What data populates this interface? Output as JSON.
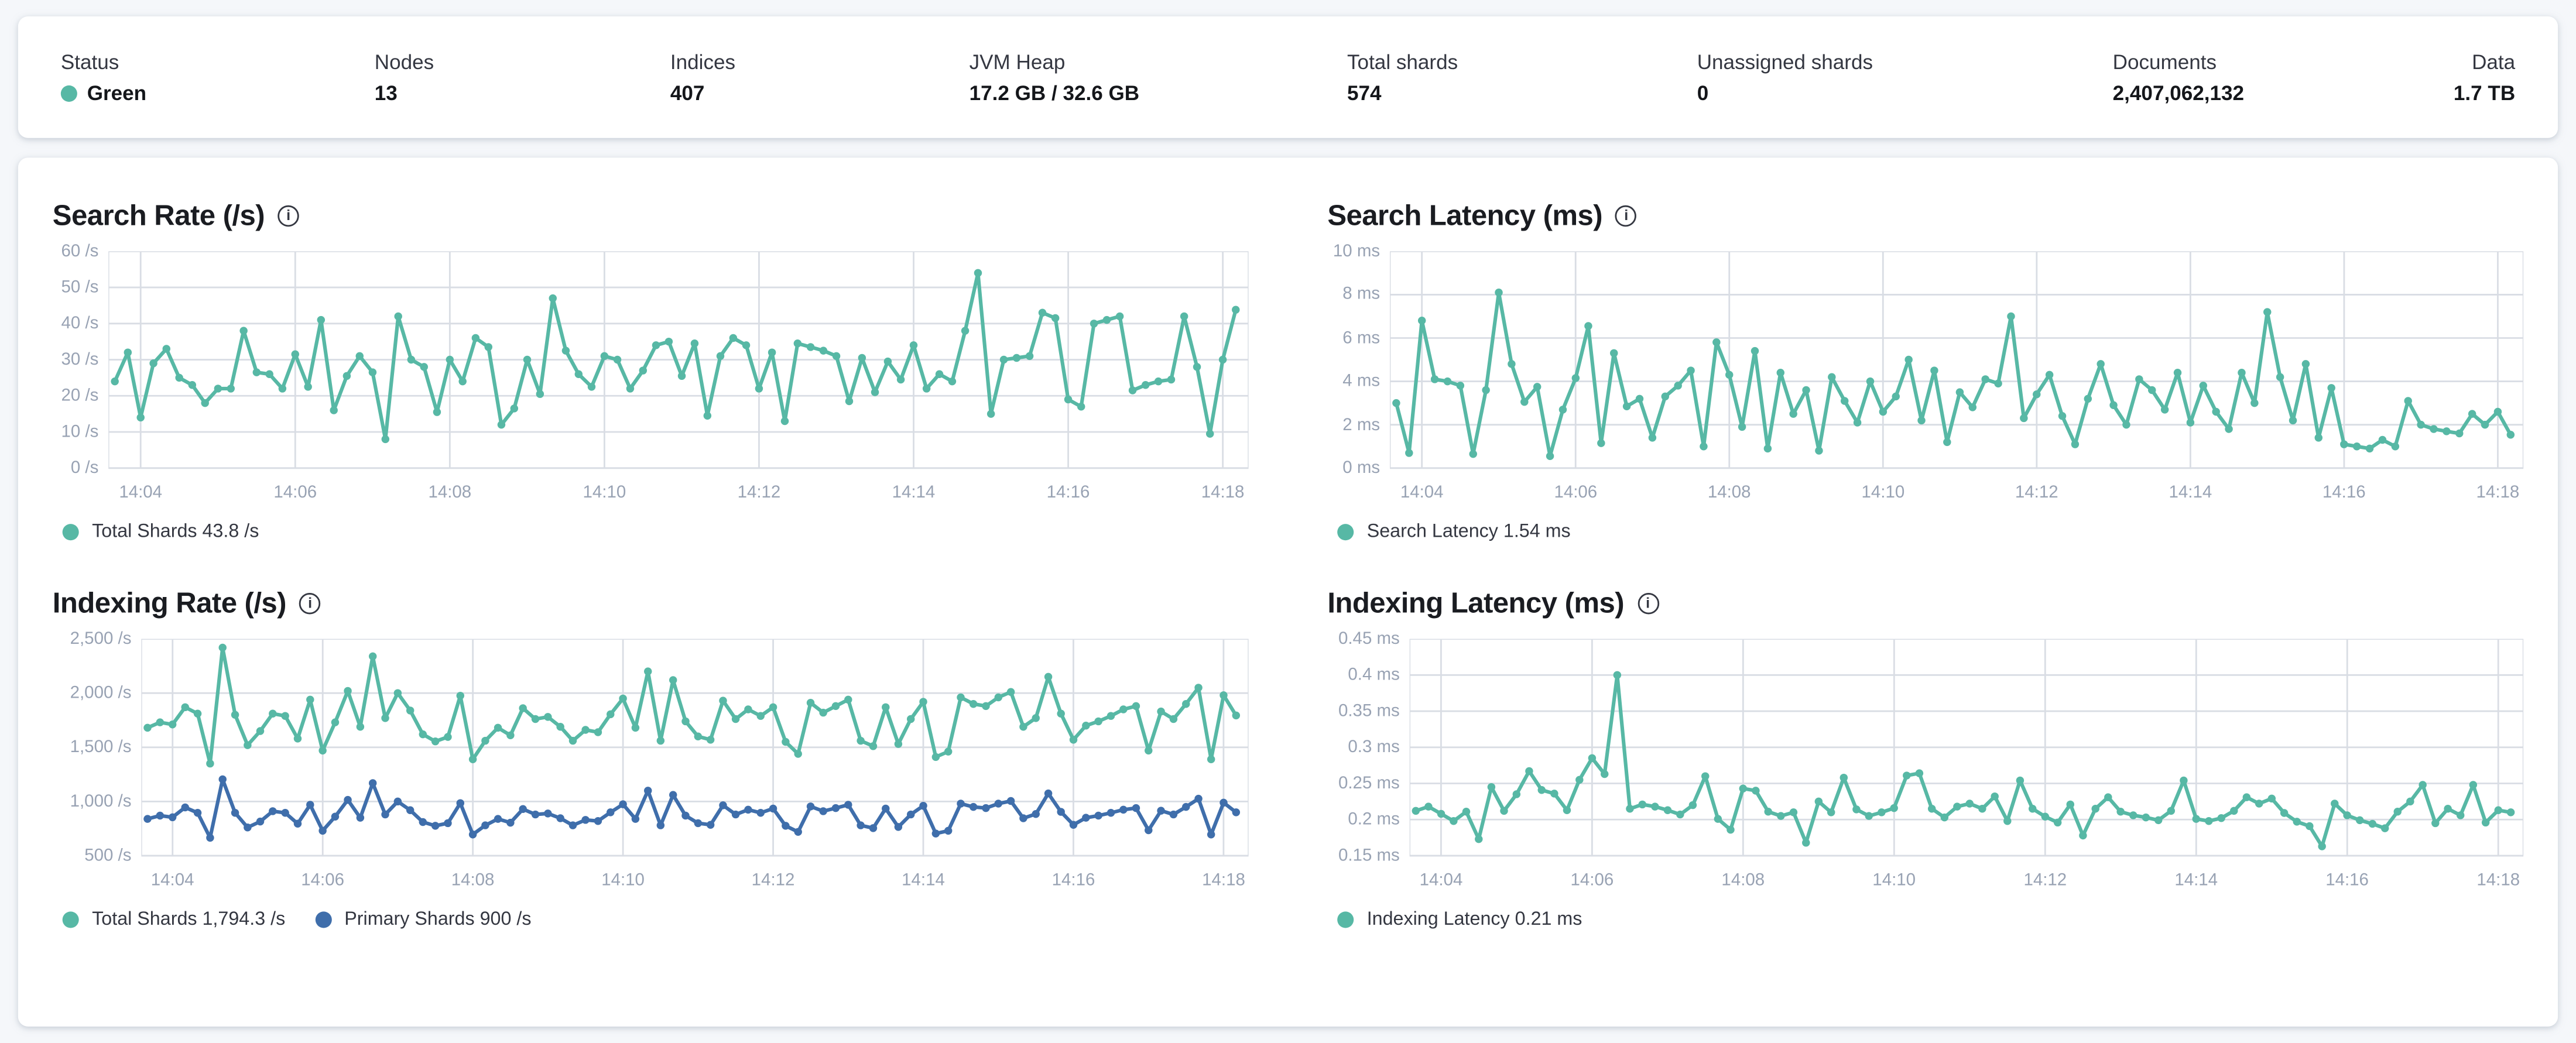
{
  "topbar": {
    "stats": [
      {
        "label": "Status",
        "value": "Green",
        "dot_color": "#57b8a5"
      },
      {
        "label": "Nodes",
        "value": "13"
      },
      {
        "label": "Indices",
        "value": "407"
      },
      {
        "label": "JVM Heap",
        "value": "17.2 GB / 32.6 GB"
      },
      {
        "label": "Total shards",
        "value": "574"
      },
      {
        "label": "Unassigned shards",
        "value": "0"
      },
      {
        "label": "Documents",
        "value": "2,407,062,132"
      },
      {
        "label": "Data",
        "value": "1.7 TB"
      }
    ]
  },
  "icons": {
    "info": "i"
  },
  "colors": {
    "teal": "#57b8a5",
    "blue": "#3f6eab",
    "grid": "#d9dde4",
    "tick_text": "#98a2b3"
  },
  "chart_data": [
    {
      "type": "line",
      "title": "Search Rate (/s)",
      "x_start": "14:03:40",
      "x_step_seconds": 10,
      "x_ticks": [
        "14:04",
        "14:06",
        "14:08",
        "14:10",
        "14:12",
        "14:14",
        "14:16",
        "14:18"
      ],
      "ylim": [
        0,
        60
      ],
      "y_ticks": [
        0,
        10,
        20,
        30,
        40,
        50,
        60
      ],
      "y_tick_labels": [
        "0 /s",
        "10 /s",
        "20 /s",
        "30 /s",
        "40 /s",
        "50 /s",
        "60 /s"
      ],
      "grid": true,
      "legend_position": "bottom",
      "legend": [
        {
          "label": "Total Shards 43.8 /s",
          "color": "#57b8a5"
        }
      ],
      "series": [
        {
          "name": "Total Shards",
          "current": "43.8 /s",
          "color": "#57b8a5",
          "values": [
            24,
            32,
            14,
            29,
            33,
            25,
            23,
            18,
            22,
            22,
            38,
            26.5,
            26,
            22,
            31.5,
            22.5,
            41,
            16,
            25.5,
            31,
            26.5,
            8,
            42,
            30,
            28,
            15.5,
            30,
            24,
            36,
            33.5,
            12,
            16.5,
            30,
            20.5,
            47,
            32.5,
            26,
            22.5,
            31,
            30,
            22,
            27,
            34,
            35,
            25.5,
            34.5,
            14.5,
            31,
            36,
            34,
            22,
            32,
            13,
            34.5,
            33.5,
            32.5,
            31,
            18.5,
            30.5,
            21,
            29.5,
            24.5,
            34,
            22,
            26,
            24,
            38,
            54,
            15,
            30,
            30.5,
            31,
            43,
            41.5,
            19,
            17,
            40,
            41,
            42,
            21.5,
            23,
            24,
            24.5,
            42,
            28,
            9.5,
            30,
            43.8
          ]
        }
      ]
    },
    {
      "type": "line",
      "title": "Search Latency (ms)",
      "x_start": "14:03:40",
      "x_step_seconds": 10,
      "x_ticks": [
        "14:04",
        "14:06",
        "14:08",
        "14:10",
        "14:12",
        "14:14",
        "14:16",
        "14:18"
      ],
      "ylim": [
        0,
        10
      ],
      "y_ticks": [
        0,
        2,
        4,
        6,
        8,
        10
      ],
      "y_tick_labels": [
        "0 ms",
        "2 ms",
        "4 ms",
        "6 ms",
        "8 ms",
        "10 ms"
      ],
      "grid": true,
      "legend_position": "bottom",
      "legend": [
        {
          "label": "Search Latency 1.54 ms",
          "color": "#57b8a5"
        }
      ],
      "series": [
        {
          "name": "Search Latency",
          "current": "1.54 ms",
          "color": "#57b8a5",
          "values": [
            3.0,
            0.7,
            6.8,
            4.1,
            4.0,
            3.8,
            0.65,
            3.6,
            8.1,
            4.8,
            3.05,
            3.75,
            0.55,
            2.7,
            4.15,
            6.55,
            1.15,
            5.3,
            2.85,
            3.2,
            1.4,
            3.3,
            3.8,
            4.5,
            1.0,
            5.8,
            4.3,
            1.9,
            5.4,
            0.9,
            4.4,
            2.5,
            3.6,
            0.8,
            4.2,
            3.1,
            2.1,
            4.0,
            2.6,
            3.3,
            5.0,
            2.2,
            4.5,
            1.2,
            3.5,
            2.8,
            4.1,
            3.9,
            7.0,
            2.3,
            3.4,
            4.3,
            2.4,
            1.1,
            3.2,
            4.8,
            2.9,
            2.0,
            4.1,
            3.6,
            2.7,
            4.4,
            2.1,
            3.8,
            2.6,
            1.8,
            4.4,
            3.0,
            7.2,
            4.2,
            2.2,
            4.8,
            1.4,
            3.7,
            1.1,
            1.0,
            0.9,
            1.3,
            1.0,
            3.1,
            2.0,
            1.8,
            1.7,
            1.6,
            2.5,
            2.0,
            2.6,
            1.54
          ]
        }
      ]
    },
    {
      "type": "line",
      "title": "Indexing Rate (/s)",
      "x_start": "14:03:40",
      "x_step_seconds": 10,
      "x_ticks": [
        "14:04",
        "14:06",
        "14:08",
        "14:10",
        "14:12",
        "14:14",
        "14:16",
        "14:18"
      ],
      "ylim": [
        500,
        2500
      ],
      "y_ticks": [
        500,
        1000,
        1500,
        2000,
        2500
      ],
      "y_tick_labels": [
        "500 /s",
        "1,000 /s",
        "1,500 /s",
        "2,000 /s",
        "2,500 /s"
      ],
      "grid": true,
      "legend_position": "bottom",
      "legend": [
        {
          "label": "Total Shards 1,794.3 /s",
          "color": "#57b8a5"
        },
        {
          "label": "Primary Shards 900 /s",
          "color": "#3f6eab"
        }
      ],
      "series": [
        {
          "name": "Total Shards",
          "current": "1,794.3 /s",
          "color": "#57b8a5",
          "values": [
            1680,
            1730,
            1710,
            1870,
            1810,
            1350,
            2420,
            1800,
            1520,
            1650,
            1810,
            1790,
            1580,
            1940,
            1470,
            1730,
            2020,
            1690,
            2340,
            1770,
            2000,
            1840,
            1620,
            1555,
            1595,
            1975,
            1390,
            1560,
            1680,
            1610,
            1860,
            1760,
            1780,
            1690,
            1560,
            1660,
            1640,
            1805,
            1950,
            1680,
            2200,
            1560,
            2120,
            1740,
            1600,
            1570,
            1930,
            1760,
            1850,
            1790,
            1870,
            1550,
            1440,
            1910,
            1820,
            1880,
            1940,
            1560,
            1510,
            1870,
            1530,
            1760,
            1920,
            1410,
            1460,
            1960,
            1900,
            1880,
            1960,
            2010,
            1690,
            1770,
            2150,
            1810,
            1570,
            1700,
            1740,
            1790,
            1850,
            1880,
            1470,
            1830,
            1760,
            1900,
            2050,
            1390,
            1980,
            1794.3
          ]
        },
        {
          "name": "Primary Shards",
          "current": "900 /s",
          "color": "#3f6eab",
          "values": [
            840,
            870,
            855,
            945,
            895,
            665,
            1205,
            895,
            760,
            815,
            910,
            895,
            795,
            970,
            730,
            860,
            1015,
            850,
            1170,
            880,
            1000,
            920,
            810,
            775,
            800,
            985,
            695,
            780,
            840,
            805,
            930,
            880,
            890,
            845,
            780,
            830,
            820,
            900,
            975,
            840,
            1100,
            780,
            1060,
            870,
            800,
            785,
            965,
            880,
            925,
            895,
            935,
            775,
            720,
            955,
            910,
            940,
            970,
            780,
            755,
            935,
            765,
            880,
            960,
            705,
            730,
            980,
            950,
            940,
            980,
            1005,
            845,
            885,
            1075,
            905,
            785,
            850,
            870,
            895,
            925,
            940,
            735,
            915,
            880,
            950,
            1025,
            695,
            990,
            900
          ]
        }
      ]
    },
    {
      "type": "line",
      "title": "Indexing Latency (ms)",
      "x_start": "14:03:40",
      "x_step_seconds": 10,
      "x_ticks": [
        "14:04",
        "14:06",
        "14:08",
        "14:10",
        "14:12",
        "14:14",
        "14:16",
        "14:18"
      ],
      "ylim": [
        0.15,
        0.45
      ],
      "y_ticks": [
        0.15,
        0.2,
        0.25,
        0.3,
        0.35,
        0.4,
        0.45
      ],
      "y_tick_labels": [
        "0.15 ms",
        "0.2 ms",
        "0.25 ms",
        "0.3 ms",
        "0.35 ms",
        "0.4 ms",
        "0.45 ms"
      ],
      "grid": true,
      "legend_position": "bottom",
      "legend": [
        {
          "label": "Indexing Latency 0.21 ms",
          "color": "#57b8a5"
        }
      ],
      "series": [
        {
          "name": "Indexing Latency",
          "current": "0.21 ms",
          "color": "#57b8a5",
          "values": [
            0.212,
            0.218,
            0.208,
            0.198,
            0.211,
            0.173,
            0.245,
            0.212,
            0.235,
            0.267,
            0.241,
            0.236,
            0.213,
            0.255,
            0.285,
            0.263,
            0.4,
            0.215,
            0.221,
            0.218,
            0.213,
            0.207,
            0.22,
            0.26,
            0.201,
            0.186,
            0.243,
            0.24,
            0.211,
            0.205,
            0.21,
            0.168,
            0.225,
            0.21,
            0.258,
            0.214,
            0.205,
            0.21,
            0.216,
            0.261,
            0.264,
            0.215,
            0.203,
            0.218,
            0.222,
            0.215,
            0.232,
            0.198,
            0.254,
            0.215,
            0.204,
            0.196,
            0.221,
            0.178,
            0.215,
            0.231,
            0.211,
            0.206,
            0.203,
            0.199,
            0.212,
            0.254,
            0.201,
            0.198,
            0.202,
            0.212,
            0.231,
            0.222,
            0.229,
            0.209,
            0.197,
            0.191,
            0.163,
            0.222,
            0.206,
            0.199,
            0.194,
            0.188,
            0.211,
            0.225,
            0.248,
            0.195,
            0.215,
            0.206,
            0.248,
            0.196,
            0.213,
            0.21
          ]
        }
      ]
    }
  ]
}
